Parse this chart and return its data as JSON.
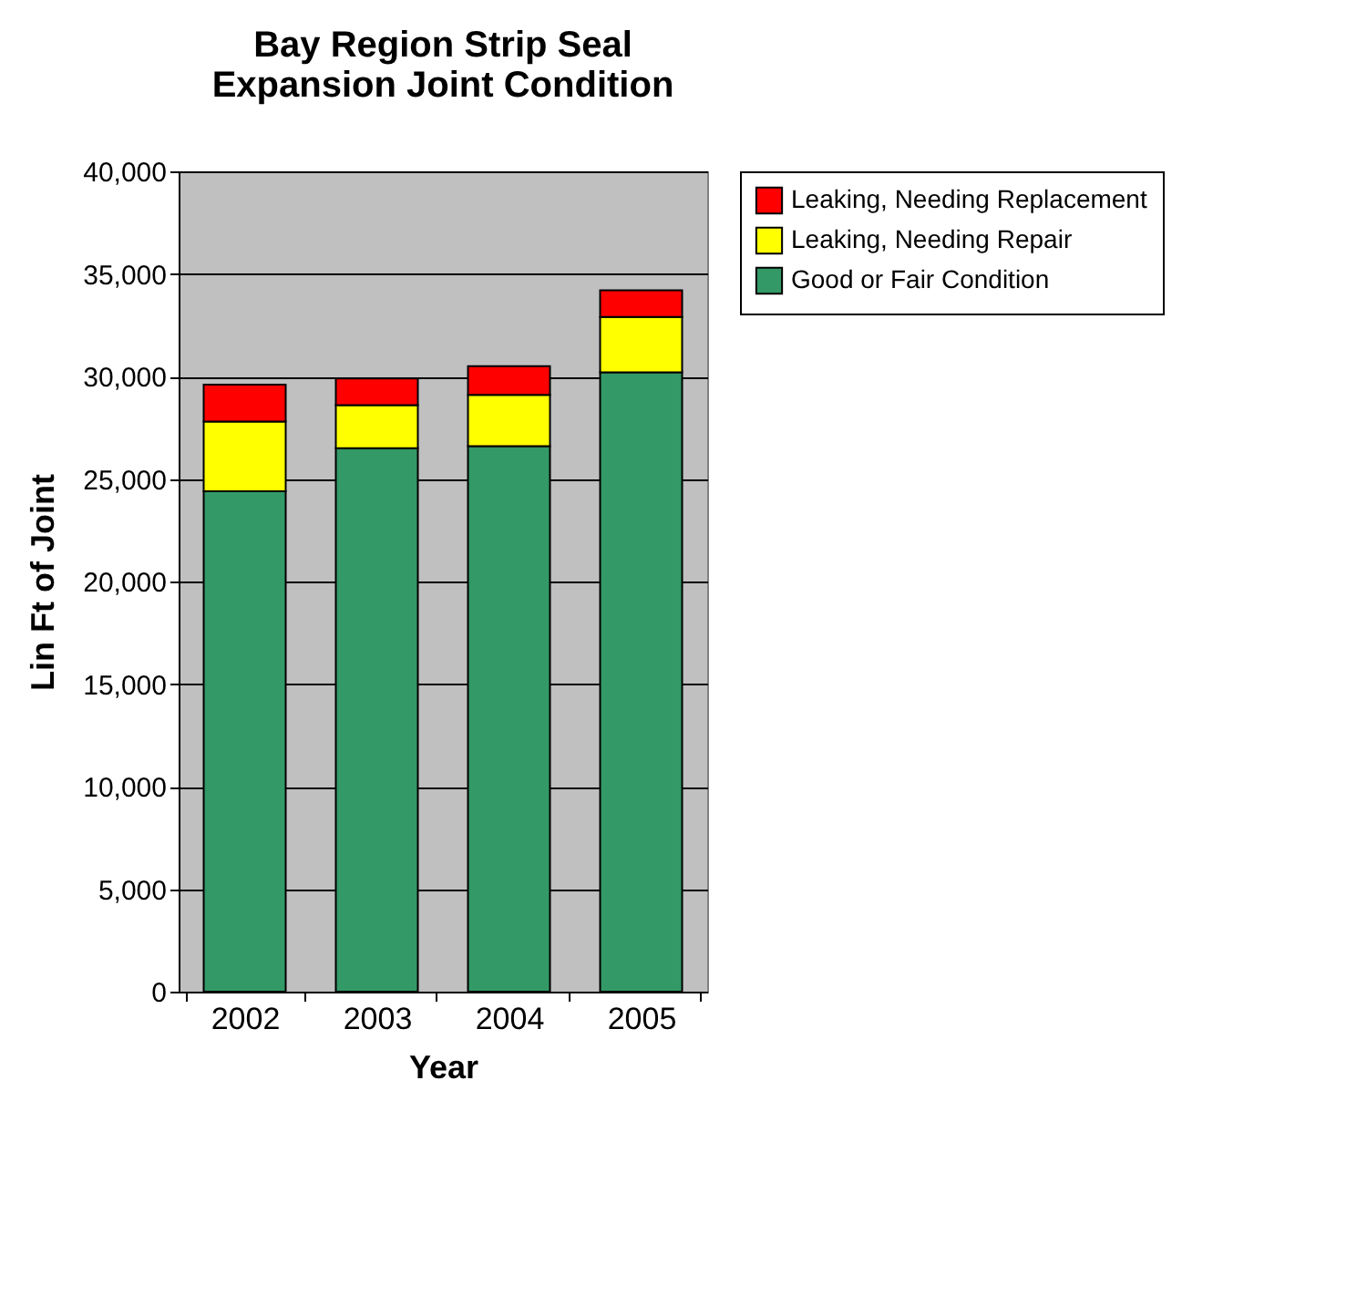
{
  "chart_data": {
    "type": "bar",
    "title": "Bay Region Strip Seal Expansion Joint Condition",
    "xlabel": "Year",
    "ylabel": "Lin Ft of Joint",
    "categories": [
      "2002",
      "2003",
      "2004",
      "2005"
    ],
    "stacked": true,
    "series": [
      {
        "name": "Good or Fair Condition",
        "color": "#339966",
        "values": [
          24400,
          26500,
          26600,
          30200
        ]
      },
      {
        "name": "Leaking, Needing Repair",
        "color": "#ffff00",
        "values": [
          3400,
          2100,
          2500,
          2700
        ]
      },
      {
        "name": "Leaking, Needing Replacement",
        "color": "#ff0000",
        "values": [
          1800,
          1300,
          1400,
          1300
        ]
      }
    ],
    "ylim": [
      0,
      40000
    ],
    "yticks": [
      0,
      {
        "value": 5000,
        "label": "5,000"
      },
      {
        "value": 10000,
        "label": "10,000"
      },
      {
        "value": 15000,
        "label": "15,000"
      },
      {
        "value": 20000,
        "label": "20,000"
      },
      {
        "value": 25000,
        "label": "25,000"
      },
      {
        "value": 30000,
        "label": "30,000"
      },
      {
        "value": 35000,
        "label": "35,000"
      },
      {
        "value": 40000,
        "label": "40,000"
      }
    ],
    "grid": "y",
    "legend": "right"
  }
}
